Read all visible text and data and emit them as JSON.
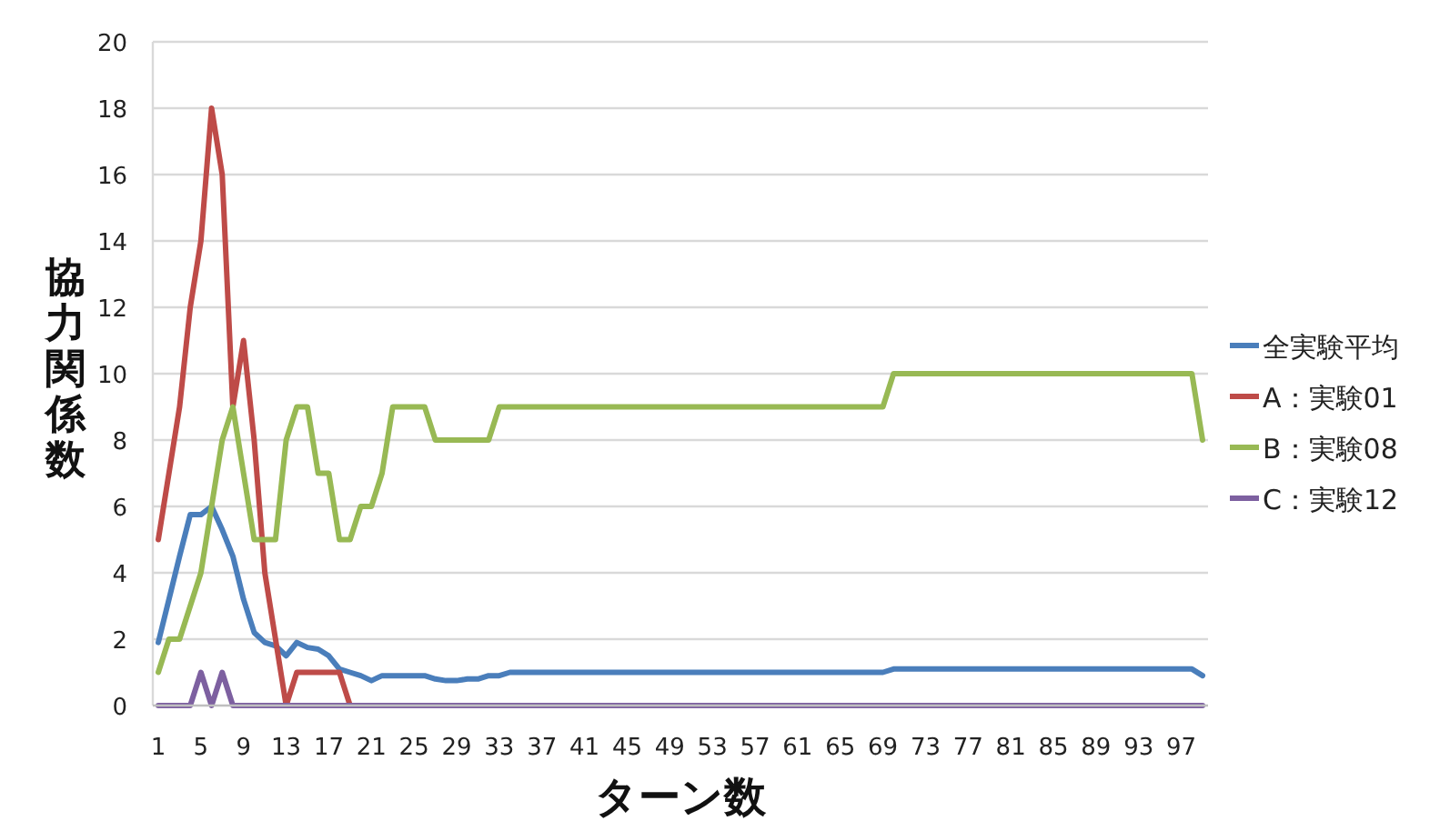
{
  "chart_data": {
    "type": "line",
    "xlabel": "ターン数",
    "ylabel": "協力関係数",
    "categories": [
      "1",
      null,
      null,
      null,
      "5",
      null,
      null,
      null,
      "9",
      null,
      null,
      null,
      "13",
      null,
      null,
      null,
      "17",
      null,
      null,
      null,
      "21",
      null,
      null,
      null,
      "25",
      null,
      null,
      null,
      "29",
      null,
      null,
      null,
      "33",
      null,
      null,
      null,
      "37",
      null,
      null,
      null,
      "41",
      null,
      null,
      null,
      "45",
      null,
      null,
      null,
      "49",
      null,
      null,
      null,
      "53",
      null,
      null,
      null,
      "57",
      null,
      null,
      null,
      "61",
      null,
      null,
      null,
      "65",
      null,
      null,
      null,
      "69",
      null,
      null,
      null,
      "73",
      null,
      null,
      null,
      "77",
      null,
      null,
      null,
      "81",
      null,
      null,
      null,
      "85",
      null,
      null,
      null,
      "89",
      null,
      null,
      null,
      "93",
      null,
      null,
      null,
      "97",
      null,
      null
    ],
    "ylim": [
      0,
      20
    ],
    "yticks": [
      0,
      2,
      4,
      6,
      8,
      10,
      12,
      14,
      16,
      18,
      20
    ],
    "grid": "y",
    "legend": "right",
    "marker": "none",
    "line_style": "solid",
    "series": [
      {
        "name": "全実験平均",
        "color": "#4a7ebb",
        "values": [
          1.9,
          3.2,
          4.5,
          5.75,
          5.75,
          6.0,
          5.3,
          4.5,
          3.2,
          2.2,
          1.9,
          1.8,
          1.5,
          1.9,
          1.75,
          1.7,
          1.5,
          1.1,
          1.0,
          0.9,
          0.75,
          0.9,
          0.9,
          0.9,
          0.9,
          0.9,
          0.8,
          0.75,
          0.75,
          0.8,
          0.8,
          0.9,
          0.9,
          1.0,
          1.0,
          1.0,
          1.0,
          1.0,
          1.0,
          1.0,
          1.0,
          1.0,
          1.0,
          1.0,
          1.0,
          1.0,
          1.0,
          1.0,
          1.0,
          1.0,
          1.0,
          1.0,
          1.0,
          1.0,
          1.0,
          1.0,
          1.0,
          1.0,
          1.0,
          1.0,
          1.0,
          1.0,
          1.0,
          1.0,
          1.0,
          1.0,
          1.0,
          1.0,
          1.0,
          1.1,
          1.1,
          1.1,
          1.1,
          1.1,
          1.1,
          1.1,
          1.1,
          1.1,
          1.1,
          1.1,
          1.1,
          1.1,
          1.1,
          1.1,
          1.1,
          1.1,
          1.1,
          1.1,
          1.1,
          1.1,
          1.1,
          1.1,
          1.1,
          1.1,
          1.1,
          1.1,
          1.1,
          1.1,
          0.9
        ]
      },
      {
        "name": "A：実験01",
        "color": "#be4b48",
        "values": [
          5,
          7,
          9,
          12,
          14,
          18,
          16,
          9,
          11,
          8,
          4,
          2,
          0,
          1,
          1,
          1,
          1,
          1,
          0,
          null,
          null,
          null,
          null,
          null,
          null,
          null,
          null,
          null,
          null,
          null,
          null,
          null,
          null,
          null,
          null,
          null,
          null,
          null,
          null,
          null,
          null,
          null,
          null,
          null,
          null,
          null,
          null,
          null,
          null,
          null,
          null,
          null,
          null,
          null,
          null,
          null,
          null,
          null,
          null,
          null,
          null,
          null,
          null,
          null,
          null,
          null,
          null,
          null,
          null,
          null,
          null,
          null,
          null,
          null,
          null,
          null,
          null,
          null,
          null,
          null,
          null,
          null,
          null,
          null,
          null,
          null,
          null,
          null,
          null,
          null,
          null,
          null,
          null,
          null,
          null,
          null,
          null,
          null,
          null
        ]
      },
      {
        "name": "B：実験08",
        "color": "#98b954",
        "values": [
          1,
          2,
          2,
          3,
          4,
          6,
          8,
          9,
          7,
          5,
          5,
          5,
          8,
          9,
          9,
          7,
          7,
          5,
          5,
          6,
          6,
          7,
          9,
          9,
          9,
          9,
          8,
          8,
          8,
          8,
          8,
          8,
          9,
          9,
          9,
          9,
          9,
          9,
          9,
          9,
          9,
          9,
          9,
          9,
          9,
          9,
          9,
          9,
          9,
          9,
          9,
          9,
          9,
          9,
          9,
          9,
          9,
          9,
          9,
          9,
          9,
          9,
          9,
          9,
          9,
          9,
          9,
          9,
          9,
          10,
          10,
          10,
          10,
          10,
          10,
          10,
          10,
          10,
          10,
          10,
          10,
          10,
          10,
          10,
          10,
          10,
          10,
          10,
          10,
          10,
          10,
          10,
          10,
          10,
          10,
          10,
          10,
          10,
          8
        ]
      },
      {
        "name": "C：実験12",
        "color": "#7d60a0",
        "values": [
          0,
          0,
          0,
          0,
          1,
          0,
          1,
          0,
          0,
          0,
          0,
          0,
          0,
          0,
          0,
          0,
          0,
          0,
          0,
          0,
          0,
          0,
          0,
          0,
          0,
          0,
          0,
          0,
          0,
          0,
          0,
          0,
          0,
          0,
          0,
          0,
          0,
          0,
          0,
          0,
          0,
          0,
          0,
          0,
          0,
          0,
          0,
          0,
          0,
          0,
          0,
          0,
          0,
          0,
          0,
          0,
          0,
          0,
          0,
          0,
          0,
          0,
          0,
          0,
          0,
          0,
          0,
          0,
          0,
          0,
          0,
          0,
          0,
          0,
          0,
          0,
          0,
          0,
          0,
          0,
          0,
          0,
          0,
          0,
          0,
          0,
          0,
          0,
          0,
          0,
          0,
          0,
          0,
          0,
          0,
          0,
          0,
          0,
          0
        ]
      }
    ]
  }
}
